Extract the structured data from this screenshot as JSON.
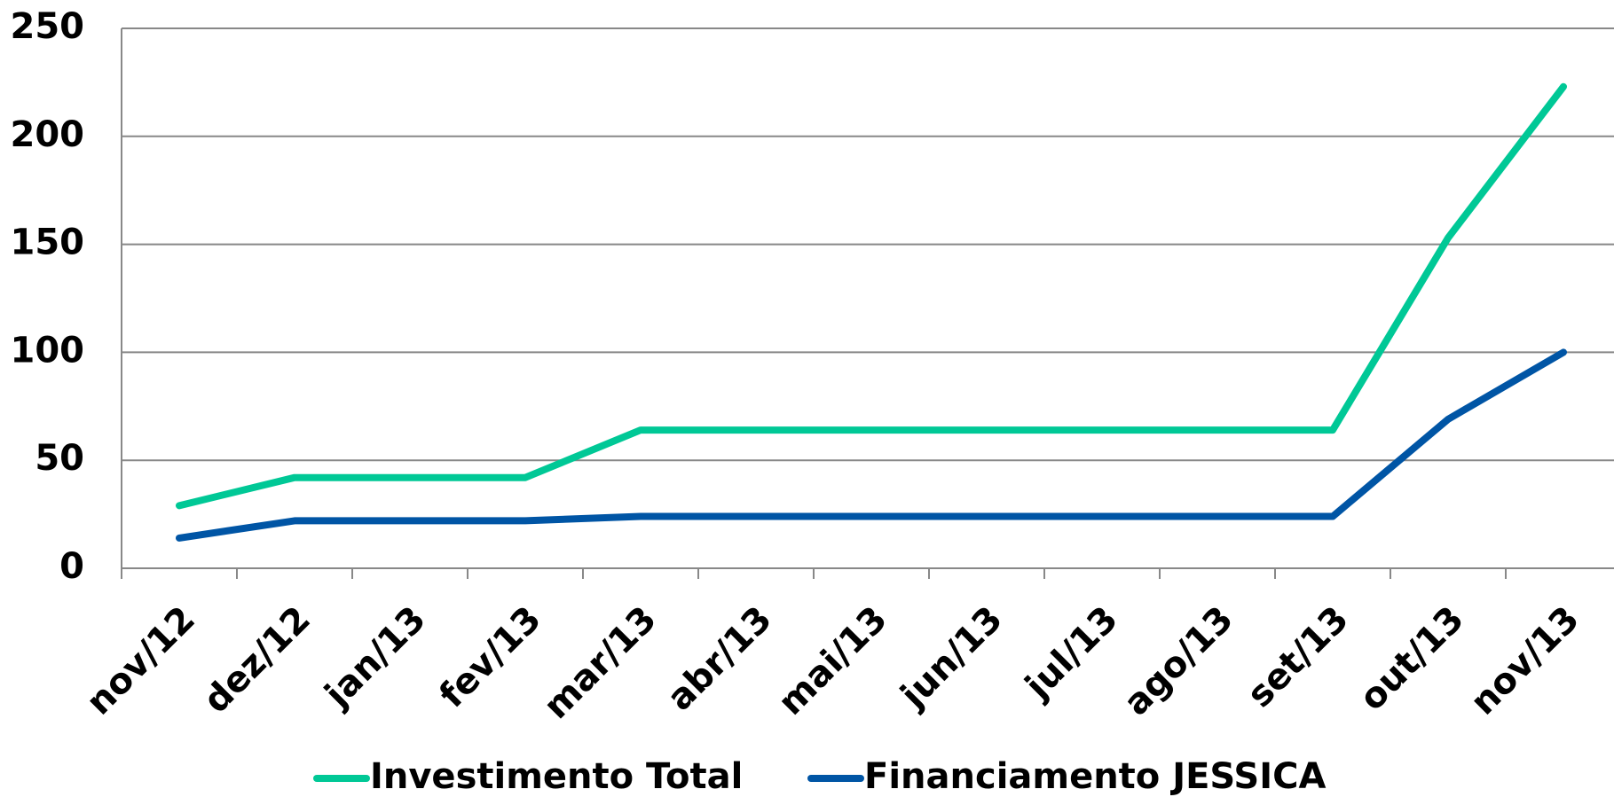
{
  "chart_data": {
    "type": "line",
    "categories": [
      "nov/12",
      "dez/12",
      "jan/13",
      "fev/13",
      "mar/13",
      "abr/13",
      "mai/13",
      "jun/13",
      "jul/13",
      "ago/13",
      "set/13",
      "out/13",
      "nov/13"
    ],
    "series": [
      {
        "name": "Investimento Total",
        "color": "#00c896",
        "values": [
          29,
          42,
          42,
          42,
          64,
          64,
          64,
          64,
          64,
          64,
          64,
          153,
          223
        ]
      },
      {
        "name": "Financiamento JESSICA",
        "color": "#0055a5",
        "values": [
          14,
          22,
          22,
          22,
          24,
          24,
          24,
          24,
          24,
          24,
          24,
          69,
          100
        ]
      }
    ],
    "ylim": [
      0,
      250
    ],
    "yticks": [
      0,
      50,
      100,
      150,
      200,
      250
    ],
    "grid": true,
    "legend": "bottom"
  }
}
